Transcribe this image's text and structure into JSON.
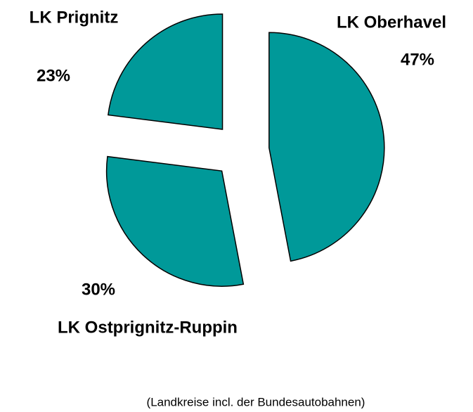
{
  "chart_data": {
    "type": "pie",
    "categories": [
      "LK Oberhavel",
      "LK Ostprignitz-Ruppin",
      "LK Prignitz"
    ],
    "values": [
      47,
      30,
      23
    ],
    "value_labels": [
      "47%",
      "30%",
      "23%"
    ],
    "color": "#009999",
    "exploded": true,
    "annotation": "(Landkreise incl. der Bundesautobahnen)"
  }
}
